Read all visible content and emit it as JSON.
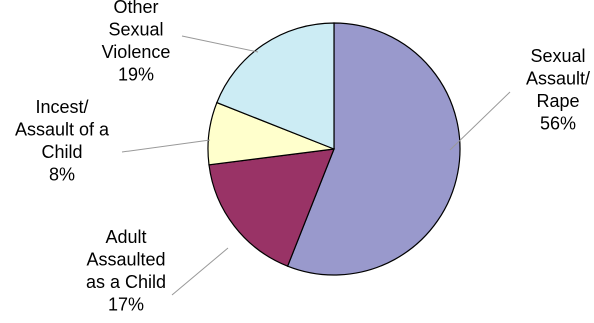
{
  "chart_data": {
    "type": "pie",
    "title": "",
    "slices": [
      {
        "label_lines": [
          "Sexual",
          "Assault/",
          "Rape"
        ],
        "value": 56,
        "value_text": "56%",
        "color": "#9999CC"
      },
      {
        "label_lines": [
          "Adult",
          "Assaulted",
          "as a Child"
        ],
        "value": 17,
        "value_text": "17%",
        "color": "#993366"
      },
      {
        "label_lines": [
          "Incest/",
          "Assault of a",
          "Child"
        ],
        "value": 8,
        "value_text": "8%",
        "color": "#FFFFCC"
      },
      {
        "label_lines": [
          "Other",
          "Sexual",
          "Violence"
        ],
        "value": 19,
        "value_text": "19%",
        "color": "#CCECF4"
      }
    ],
    "legend": "none"
  }
}
